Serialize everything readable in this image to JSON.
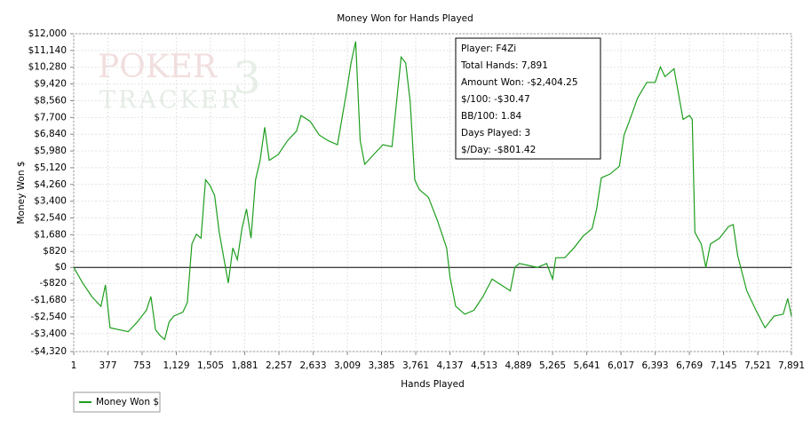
{
  "chart_data": {
    "type": "line",
    "title": "Money Won for Hands Played",
    "xlabel": "Hands Played",
    "ylabel": "Money Won $",
    "watermark": [
      "POKER",
      "TRACKER",
      "3"
    ],
    "info_box": [
      "Player: F4Zi",
      "Total Hands: 7,891",
      "Amount Won: -$2,404.25",
      "$/100: -$30.47",
      "BB/100: 1.84",
      "Days Played: 3",
      "$/Day: -$801.42"
    ],
    "x": [
      1,
      100,
      200,
      300,
      350,
      400,
      500,
      600,
      700,
      800,
      850,
      900,
      950,
      1000,
      1050,
      1100,
      1200,
      1250,
      1300,
      1350,
      1400,
      1450,
      1500,
      1550,
      1600,
      1650,
      1700,
      1750,
      1800,
      1850,
      1900,
      1950,
      2000,
      2050,
      2100,
      2150,
      2250,
      2350,
      2450,
      2500,
      2600,
      2700,
      2800,
      2900,
      3000,
      3050,
      3100,
      3150,
      3200,
      3300,
      3400,
      3500,
      3600,
      3650,
      3700,
      3750,
      3800,
      3900,
      4000,
      4100,
      4137,
      4200,
      4300,
      4400,
      4500,
      4600,
      4700,
      4800,
      4850,
      4900,
      5000,
      5100,
      5200,
      5265,
      5300,
      5400,
      5500,
      5600,
      5700,
      5750,
      5800,
      5900,
      6000,
      6050,
      6100,
      6200,
      6300,
      6393,
      6450,
      6500,
      6600,
      6700,
      6769,
      6800,
      6830,
      6900,
      6950,
      7000,
      7100,
      7200,
      7250,
      7300,
      7400,
      7500,
      7600,
      7700,
      7800,
      7850,
      7891
    ],
    "series": [
      {
        "name": "Money Won $",
        "color": "#1e9e1e",
        "values": [
          0,
          -800,
          -1500,
          -2000,
          -900,
          -3100,
          -3200,
          -3300,
          -2800,
          -2200,
          -1500,
          -3200,
          -3500,
          -3700,
          -2800,
          -2500,
          -2300,
          -1800,
          1200,
          1700,
          1500,
          4500,
          4200,
          3700,
          1800,
          500,
          -800,
          1000,
          400,
          2000,
          3000,
          1500,
          4500,
          5500,
          7200,
          5500,
          5800,
          6500,
          7000,
          7800,
          7500,
          6800,
          6500,
          6300,
          9000,
          10500,
          11600,
          6500,
          5300,
          5800,
          6300,
          6200,
          10800,
          10500,
          8500,
          4500,
          4000,
          3600,
          2400,
          1000,
          -500,
          -2000,
          -2400,
          -2200,
          -1500,
          -600,
          -900,
          -1200,
          0,
          200,
          100,
          0,
          200,
          -600,
          500,
          500,
          1000,
          1600,
          2000,
          3000,
          4600,
          4800,
          5200,
          6800,
          7400,
          8700,
          9500,
          9500,
          10300,
          9800,
          10200,
          7600,
          7800,
          7600,
          1800,
          1200,
          0,
          1200,
          1500,
          2100,
          2200,
          600,
          -1200,
          -2200,
          -3100,
          -2500,
          -2400,
          -1600,
          -2500
        ]
      }
    ],
    "xlim": [
      1,
      7891
    ],
    "xticks": [
      1,
      377,
      753,
      {
        "value": 1129,
        "label": "1,129"
      },
      {
        "value": 1505,
        "label": "1,505"
      },
      {
        "value": 1881,
        "label": "1,881"
      },
      {
        "value": 2257,
        "label": "2,257"
      },
      {
        "value": 2633,
        "label": "2,633"
      },
      {
        "value": 3009,
        "label": "3,009"
      },
      {
        "value": 3385,
        "label": "3,385"
      },
      {
        "value": 3761,
        "label": "3,761"
      },
      {
        "value": 4137,
        "label": "4,137"
      },
      {
        "value": 4513,
        "label": "4,513"
      },
      {
        "value": 4889,
        "label": "4,889"
      },
      {
        "value": 5265,
        "label": "5,265"
      },
      {
        "value": 5641,
        "label": "5,641"
      },
      {
        "value": 6017,
        "label": "6,017"
      },
      {
        "value": 6393,
        "label": "6,393"
      },
      {
        "value": 6769,
        "label": "6,769"
      },
      {
        "value": 7145,
        "label": "7,145"
      },
      {
        "value": 7521,
        "label": "7,521"
      },
      {
        "value": 7891,
        "label": "7,891"
      }
    ],
    "ylim": [
      -4320,
      12000
    ],
    "yticks": [
      {
        "value": 12000,
        "label": "$12,000"
      },
      {
        "value": 11140,
        "label": "$11,140"
      },
      {
        "value": 10280,
        "label": "$10,280"
      },
      {
        "value": 9420,
        "label": "$9,420"
      },
      {
        "value": 8560,
        "label": "$8,560"
      },
      {
        "value": 7700,
        "label": "$7,700"
      },
      {
        "value": 6840,
        "label": "$6,840"
      },
      {
        "value": 5980,
        "label": "$5,980"
      },
      {
        "value": 5120,
        "label": "$5,120"
      },
      {
        "value": 4260,
        "label": "$4,260"
      },
      {
        "value": 3400,
        "label": "$3,400"
      },
      {
        "value": 2540,
        "label": "$2,540"
      },
      {
        "value": 1680,
        "label": "$1,680"
      },
      {
        "value": 820,
        "label": "$820"
      },
      {
        "value": 0,
        "label": "$0"
      },
      {
        "value": -820,
        "label": "-$820"
      },
      {
        "value": -1680,
        "label": "-$1,680"
      },
      {
        "value": -2540,
        "label": "-$2,540"
      },
      {
        "value": -3400,
        "label": "-$3,400"
      },
      {
        "value": -4320,
        "label": "-$4,320"
      }
    ],
    "grid": true
  }
}
